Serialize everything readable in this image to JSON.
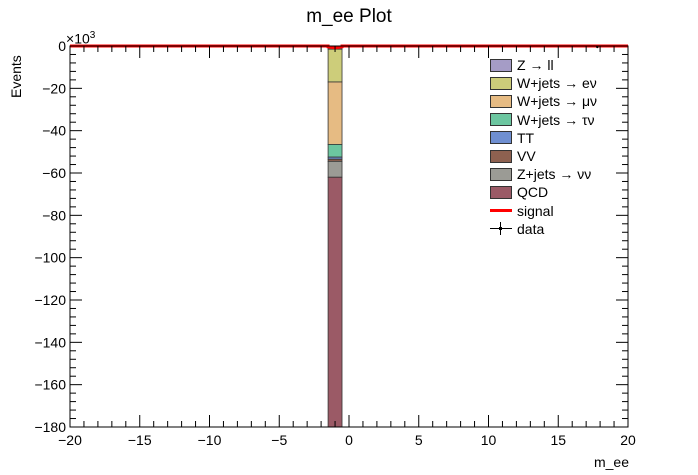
{
  "chart_data": {
    "type": "bar",
    "stacked": true,
    "title": "m_ee Plot",
    "xlabel": "m_ee",
    "ylabel": "Events",
    "y_multiplier": "10",
    "y_multiplier_exp": "3",
    "xlim": [
      -20,
      20
    ],
    "ylim": [
      -180,
      0
    ],
    "x_ticks": [
      -20,
      -15,
      -10,
      -5,
      0,
      5,
      10,
      15,
      20
    ],
    "x_tick_labels": [
      "−20",
      "−15",
      "−10",
      "−5",
      "0",
      "5",
      "10",
      "15",
      "20"
    ],
    "y_ticks": [
      0,
      -20,
      -40,
      -60,
      -80,
      -100,
      -120,
      -140,
      -160,
      -180
    ],
    "y_tick_labels": [
      "0",
      "−20",
      "−40",
      "−60",
      "−80",
      "−100",
      "−120",
      "−140",
      "−160",
      "−180"
    ],
    "bin": [
      -1.5,
      -0.5
    ],
    "stack": [
      {
        "name": "Z → ll",
        "from": 0,
        "to": -1.5,
        "color": "#a59cc6"
      },
      {
        "name": "W+jets → eν",
        "from": -1.5,
        "to": -17,
        "color": "#cdcd7a"
      },
      {
        "name": "W+jets → μν",
        "from": -17,
        "to": -46.5,
        "color": "#e6bb83"
      },
      {
        "name": "W+jets → τν",
        "from": -46.5,
        "to": -52.5,
        "color": "#6cc6a0"
      },
      {
        "name": "TT",
        "from": -52.5,
        "to": -53.5,
        "color": "#6f8fd1"
      },
      {
        "name": "VV",
        "from": -53.5,
        "to": -54.5,
        "color": "#8e6150"
      },
      {
        "name": "Z+jets → νν",
        "from": -54.5,
        "to": -62,
        "color": "#9b9b95"
      },
      {
        "name": "QCD",
        "from": -62,
        "to": -180,
        "color": "#9b5a66"
      }
    ],
    "signal": {
      "name": "signal",
      "color": "#ff0000",
      "x": [
        -20,
        -1.5,
        -1.5,
        -1,
        -0.5,
        -0.5,
        20
      ],
      "y": [
        0,
        0,
        -0.4,
        -0.9,
        -0.4,
        0,
        0
      ]
    },
    "data": {
      "name": "data",
      "x": [
        17.8
      ],
      "y": [
        0
      ]
    },
    "legend_position": "top-right"
  }
}
